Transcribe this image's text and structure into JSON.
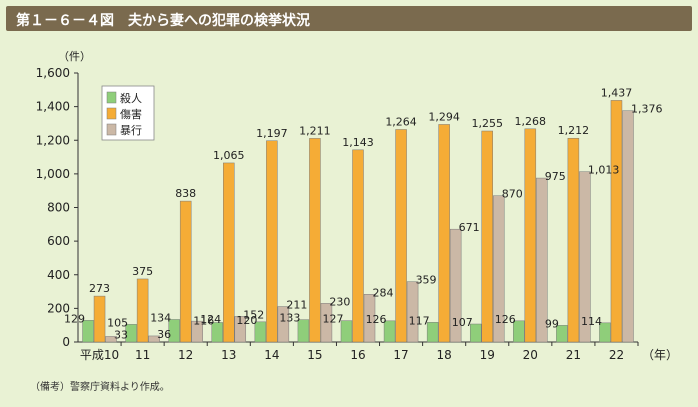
{
  "header": {
    "title": "第１－６－４図　夫から妻への犯罪の検挙状況"
  },
  "note": "（備考）警察庁資料より作成。",
  "colors": {
    "background": "#e9f2d4",
    "title_bar": "#7a6a4e",
    "murder": "#8fce7a",
    "injury": "#f5ac36",
    "assault": "#cbb8a6"
  },
  "chart_data": {
    "type": "bar",
    "y_unit_label": "（件）",
    "x_unit_label": "（年）",
    "categories": [
      "平成10",
      "11",
      "12",
      "13",
      "14",
      "15",
      "16",
      "17",
      "18",
      "19",
      "20",
      "21",
      "22"
    ],
    "series": [
      {
        "name": "殺人",
        "values": [
          129,
          105,
          134,
          116,
          120,
          133,
          127,
          126,
          117,
          107,
          126,
          99,
          114
        ]
      },
      {
        "name": "傷害",
        "values": [
          273,
          375,
          838,
          1065,
          1197,
          1211,
          1143,
          1264,
          1294,
          1255,
          1268,
          1212,
          1437
        ]
      },
      {
        "name": "暴行",
        "values": [
          33,
          36,
          124,
          152,
          211,
          230,
          284,
          359,
          671,
          870,
          975,
          1013,
          1376
        ]
      }
    ],
    "yticks": [
      "0",
      "200",
      "400",
      "600",
      "800",
      "1,000",
      "1,200",
      "1,400",
      "1,600"
    ],
    "ylim": [
      0,
      1600
    ],
    "grid": false,
    "legend": "top-left"
  }
}
